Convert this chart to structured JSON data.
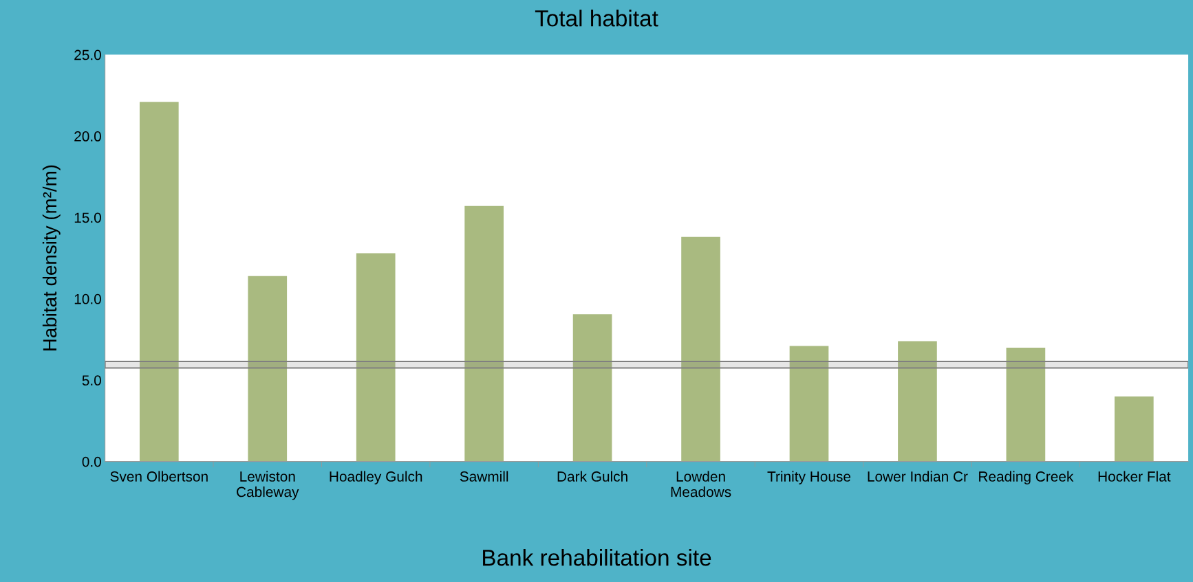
{
  "chart_data": {
    "type": "bar",
    "title": "Total habitat",
    "xlabel": "Bank rehabilitation site",
    "ylabel": "Habitat density (m²/m)",
    "categories": [
      "Sven Olbertson",
      "Lewiston\nCableway",
      "Hoadley Gulch",
      "Sawmill",
      "Dark Gulch",
      "Lowden\nMeadows",
      "Trinity House",
      "Lower Indian Cr",
      "Reading Creek",
      "Hocker Flat"
    ],
    "values": [
      22.1,
      11.4,
      12.8,
      15.7,
      9.05,
      13.8,
      7.1,
      7.4,
      7.0,
      4.0
    ],
    "color": "#a9ba80",
    "ylim": [
      0,
      25
    ],
    "yticks": [
      {
        "value": 0,
        "label": "0.0"
      },
      {
        "value": 5,
        "label": "5.0"
      },
      {
        "value": 10,
        "label": "10.0"
      },
      {
        "value": 15,
        "label": "15.0"
      },
      {
        "value": 20,
        "label": "20.0"
      },
      {
        "value": 25,
        "label": "25.0"
      }
    ],
    "bands": [
      {
        "axis": "y",
        "from": 5.75,
        "to": 6.15,
        "color": "#808080"
      }
    ],
    "grid": false,
    "legend": false
  }
}
